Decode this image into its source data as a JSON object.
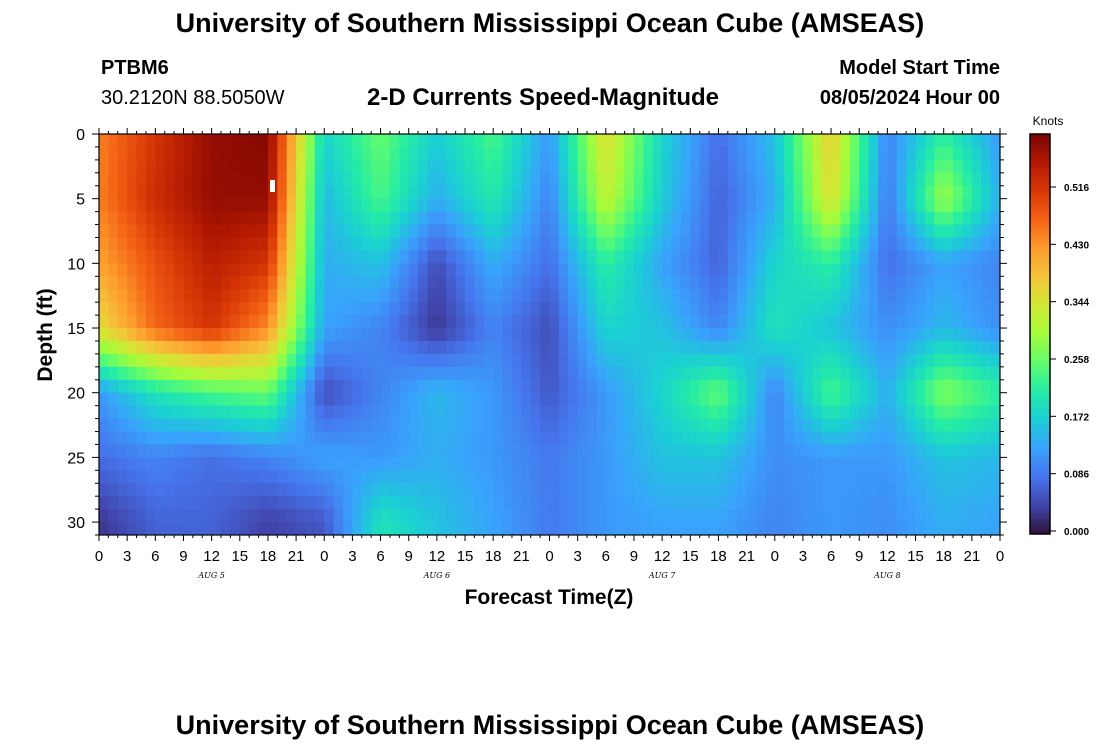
{
  "page": {
    "title": "University of Southern Mississippi Ocean Cube (AMSEAS)",
    "footer_title": "University of Southern Mississippi Ocean Cube (AMSEAS)",
    "station_id": "PTBM6",
    "station_coords": "30.2120N  88.5050W",
    "plot_title": "2-D Currents Speed-Magnitude",
    "model_start_label": "Model Start Time",
    "model_start_value": "08/05/2024 Hour 00"
  },
  "chart_data": {
    "type": "heatmap",
    "title": "2-D Currents Speed-Magnitude",
    "xlabel": "Forecast Time(Z)",
    "ylabel": "Depth (ft)",
    "colorbar_label": "Knots",
    "x_tick_labels": [
      "0",
      "3",
      "6",
      "9",
      "12",
      "15",
      "18",
      "21",
      "0",
      "3",
      "6",
      "9",
      "12",
      "15",
      "18",
      "21",
      "0",
      "3",
      "6",
      "9",
      "12",
      "15",
      "18",
      "21",
      "0",
      "3",
      "6",
      "9",
      "12",
      "15",
      "18",
      "21",
      "0"
    ],
    "day_labels": [
      "AUG 5",
      "AUG 6",
      "AUG 7",
      "AUG 8"
    ],
    "y_tick_labels": [
      "0",
      "5",
      "10",
      "15",
      "20",
      "25",
      "30"
    ],
    "y_tick_values": [
      0,
      5,
      10,
      15,
      20,
      25,
      30
    ],
    "xlim_hours": [
      0,
      96
    ],
    "ylim_ft": [
      0,
      31
    ],
    "colorbar_ticks": [
      "0.000",
      "0.086",
      "0.172",
      "0.258",
      "0.344",
      "0.430",
      "0.516"
    ],
    "colorbar_tick_values": [
      0.0,
      0.086,
      0.172,
      0.258,
      0.344,
      0.43,
      0.516
    ],
    "value_range": [
      0,
      0.6
    ],
    "depth_ft": [
      0,
      5,
      10,
      15,
      20,
      25,
      30
    ],
    "time_hours": [
      0,
      6,
      12,
      18,
      24,
      30,
      36,
      42,
      48,
      54,
      60,
      66,
      72,
      78,
      84,
      90,
      96
    ],
    "speed_knots": [
      [
        0.45,
        0.52,
        0.58,
        0.59,
        0.18,
        0.26,
        0.17,
        0.24,
        0.12,
        0.36,
        0.18,
        0.08,
        0.16,
        0.38,
        0.1,
        0.22,
        0.12
      ],
      [
        0.45,
        0.53,
        0.58,
        0.58,
        0.15,
        0.24,
        0.14,
        0.21,
        0.1,
        0.33,
        0.17,
        0.07,
        0.14,
        0.36,
        0.09,
        0.3,
        0.14
      ],
      [
        0.42,
        0.49,
        0.55,
        0.52,
        0.14,
        0.16,
        0.05,
        0.14,
        0.08,
        0.22,
        0.13,
        0.07,
        0.18,
        0.22,
        0.08,
        0.13,
        0.1
      ],
      [
        0.36,
        0.47,
        0.52,
        0.44,
        0.13,
        0.1,
        0.03,
        0.1,
        0.05,
        0.18,
        0.16,
        0.1,
        0.2,
        0.16,
        0.11,
        0.15,
        0.11
      ],
      [
        0.12,
        0.2,
        0.24,
        0.26,
        0.05,
        0.1,
        0.15,
        0.12,
        0.06,
        0.12,
        0.18,
        0.26,
        0.1,
        0.24,
        0.14,
        0.28,
        0.22
      ],
      [
        0.08,
        0.1,
        0.08,
        0.1,
        0.13,
        0.12,
        0.14,
        0.12,
        0.09,
        0.12,
        0.16,
        0.16,
        0.11,
        0.12,
        0.12,
        0.16,
        0.15
      ],
      [
        0.03,
        0.07,
        0.07,
        0.04,
        0.06,
        0.2,
        0.16,
        0.13,
        0.09,
        0.12,
        0.13,
        0.13,
        0.1,
        0.12,
        0.11,
        0.14,
        0.13
      ]
    ]
  },
  "colors": {
    "scale": [
      "#30123b",
      "#4145ab",
      "#4675ed",
      "#39a2fc",
      "#1bcfd4",
      "#24eca6",
      "#61fc6c",
      "#a4fc3b",
      "#d1e834",
      "#f3c63a",
      "#fe9b2d",
      "#f36315",
      "#d93806",
      "#b11901",
      "#7a0403"
    ]
  }
}
